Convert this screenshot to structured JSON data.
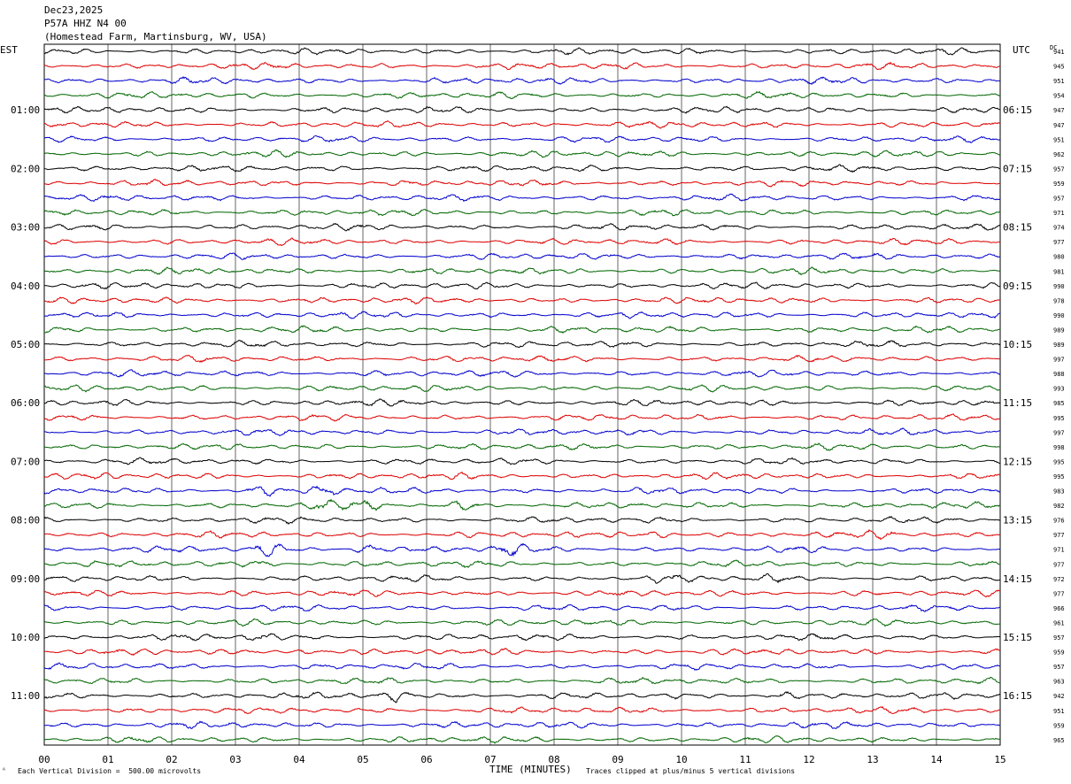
{
  "header": {
    "date": "Dec23,2025",
    "station": "P57A HHZ N4 00",
    "location": "(Homestead Farm, Martinsburg, WV, USA)"
  },
  "left_axis_label": "EST",
  "right_axis_label": "UTC",
  "dc_label": "DC",
  "footer": {
    "scale_text": "Each Vertical Division =  500.00 microvolts",
    "clip_text": "Traces clipped at plus/minus 5 vertical divisions",
    "corner_mark": "ᴬ"
  },
  "colors": [
    "#000000",
    "#dd0000",
    "#0000cc",
    "#006600"
  ],
  "chart_data": {
    "type": "line",
    "xlabel": "TIME (MINUTES)",
    "xticks": [
      "00",
      "01",
      "02",
      "03",
      "04",
      "05",
      "06",
      "07",
      "08",
      "09",
      "10",
      "11",
      "12",
      "13",
      "14",
      "15"
    ],
    "xlim": [
      0,
      15
    ],
    "rows": 48,
    "left_hour_labels": [
      "01:00",
      "02:00",
      "03:00",
      "04:00",
      "05:00",
      "06:00",
      "07:00",
      "08:00",
      "09:00",
      "10:00",
      "11:00"
    ],
    "right_hour_labels": [
      "06:15",
      "07:15",
      "08:15",
      "09:15",
      "10:15",
      "11:15",
      "12:15",
      "13:15",
      "14:15",
      "15:15",
      "16:15"
    ],
    "dc_offsets": [
      941,
      945,
      951,
      954,
      947,
      947,
      951,
      962,
      957,
      959,
      957,
      971,
      974,
      977,
      980,
      981,
      990,
      978,
      990,
      989,
      989,
      997,
      988,
      993,
      985,
      995,
      997,
      998,
      995,
      995,
      983,
      982,
      976,
      977,
      971,
      977,
      972,
      977,
      966,
      961,
      957,
      959,
      957,
      963,
      942,
      951,
      959,
      965
    ],
    "events": [
      {
        "row": 30,
        "minute": 3.4,
        "strength": 2.0
      },
      {
        "row": 30,
        "minute": 4.4,
        "strength": 2.8
      },
      {
        "row": 31,
        "minute": 4.35,
        "strength": 2.0
      },
      {
        "row": 31,
        "minute": 5.0,
        "strength": 2.2
      },
      {
        "row": 31,
        "minute": 6.6,
        "strength": 1.8
      },
      {
        "row": 33,
        "minute": 9.6,
        "strength": 1.6
      },
      {
        "row": 33,
        "minute": 13.2,
        "strength": 1.5
      },
      {
        "row": 34,
        "minute": 3.5,
        "strength": 3.2
      },
      {
        "row": 34,
        "minute": 5.1,
        "strength": 2.2
      },
      {
        "row": 34,
        "minute": 7.3,
        "strength": 2.4
      },
      {
        "row": 35,
        "minute": 3.4,
        "strength": 1.6
      },
      {
        "row": 36,
        "minute": 9.8,
        "strength": 1.4
      },
      {
        "row": 36,
        "minute": 11.4,
        "strength": 1.4
      },
      {
        "row": 40,
        "minute": 3.4,
        "strength": 1.8
      },
      {
        "row": 41,
        "minute": 4.2,
        "strength": 1.5
      },
      {
        "row": 44,
        "minute": 5.5,
        "strength": 2.6
      },
      {
        "row": 44,
        "minute": 11.6,
        "strength": 1.6
      }
    ]
  }
}
